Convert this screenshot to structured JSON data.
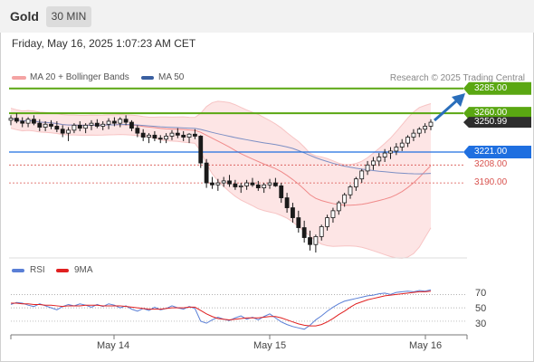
{
  "header": {
    "title": "Gold",
    "timeframe": "30 MIN"
  },
  "datetime": "Friday, May 16, 2025 1:07:23 AM CET",
  "legend": [
    {
      "label": "MA 20 + Bollinger Bands",
      "color": "#f4a3a3"
    },
    {
      "label": "MA 50",
      "color": "#3a5fa0"
    }
  ],
  "attribution": "Research © 2025 Trading Central",
  "levels": [
    {
      "label": "3285.00",
      "value": 3285.0,
      "style": "green-box",
      "color": "#5aa712"
    },
    {
      "label": "3260.00",
      "value": 3260.0,
      "style": "green-box",
      "color": "#5aa712"
    },
    {
      "label": "3250.99",
      "value": 3250.99,
      "style": "dark-box",
      "color": "#2e2e2e"
    },
    {
      "label": "3221.00",
      "value": 3221.0,
      "style": "blue-box",
      "color": "#1f6fe0"
    },
    {
      "label": "3208.00",
      "value": 3208.0,
      "style": "red-text",
      "color": "#d9534f"
    },
    {
      "label": "3190.00",
      "value": 3190.0,
      "style": "red-text",
      "color": "#d9534f"
    }
  ],
  "chart_data": {
    "type": "candlestick",
    "price_range": [
      3110,
      3292
    ],
    "candles": [
      [
        3253,
        3258,
        3248,
        3255
      ],
      [
        3255,
        3260,
        3250,
        3252
      ],
      [
        3252,
        3256,
        3246,
        3250
      ],
      [
        3250,
        3256,
        3246,
        3254
      ],
      [
        3254,
        3258,
        3248,
        3250
      ],
      [
        3250,
        3254,
        3242,
        3246
      ],
      [
        3246,
        3252,
        3242,
        3249
      ],
      [
        3249,
        3253,
        3244,
        3247
      ],
      [
        3247,
        3252,
        3241,
        3244
      ],
      [
        3244,
        3248,
        3236,
        3240
      ],
      [
        3240,
        3246,
        3232,
        3243
      ],
      [
        3243,
        3250,
        3240,
        3248
      ],
      [
        3248,
        3252,
        3242,
        3245
      ],
      [
        3245,
        3250,
        3240,
        3248
      ],
      [
        3248,
        3253,
        3243,
        3250
      ],
      [
        3250,
        3254,
        3245,
        3247
      ],
      [
        3247,
        3252,
        3243,
        3249
      ],
      [
        3249,
        3255,
        3244,
        3252
      ],
      [
        3252,
        3256,
        3247,
        3250
      ],
      [
        3250,
        3256,
        3246,
        3254
      ],
      [
        3254,
        3258,
        3248,
        3251
      ],
      [
        3251,
        3253,
        3242,
        3245
      ],
      [
        3245,
        3248,
        3236,
        3240
      ],
      [
        3240,
        3244,
        3232,
        3236
      ],
      [
        3236,
        3240,
        3230,
        3238
      ],
      [
        3238,
        3242,
        3232,
        3235
      ],
      [
        3235,
        3238,
        3230,
        3234
      ],
      [
        3234,
        3240,
        3230,
        3237
      ],
      [
        3237,
        3243,
        3233,
        3240
      ],
      [
        3240,
        3245,
        3235,
        3238
      ],
      [
        3238,
        3242,
        3232,
        3236
      ],
      [
        3236,
        3240,
        3230,
        3239
      ],
      [
        3239,
        3244,
        3234,
        3237
      ],
      [
        3237,
        3238,
        3205,
        3210
      ],
      [
        3210,
        3214,
        3185,
        3190
      ],
      [
        3190,
        3196,
        3184,
        3188
      ],
      [
        3188,
        3194,
        3182,
        3190
      ],
      [
        3190,
        3196,
        3186,
        3192
      ],
      [
        3192,
        3198,
        3186,
        3189
      ],
      [
        3189,
        3193,
        3183,
        3186
      ],
      [
        3186,
        3190,
        3180,
        3187
      ],
      [
        3187,
        3193,
        3183,
        3190
      ],
      [
        3190,
        3195,
        3186,
        3188
      ],
      [
        3188,
        3192,
        3182,
        3185
      ],
      [
        3185,
        3190,
        3180,
        3188
      ],
      [
        3188,
        3194,
        3184,
        3190
      ],
      [
        3190,
        3195,
        3186,
        3187
      ],
      [
        3187,
        3190,
        3170,
        3175
      ],
      [
        3175,
        3180,
        3160,
        3165
      ],
      [
        3165,
        3170,
        3150,
        3155
      ],
      [
        3155,
        3162,
        3140,
        3145
      ],
      [
        3145,
        3152,
        3130,
        3135
      ],
      [
        3135,
        3142,
        3122,
        3128
      ],
      [
        3128,
        3138,
        3120,
        3136
      ],
      [
        3136,
        3148,
        3132,
        3146
      ],
      [
        3146,
        3158,
        3142,
        3155
      ],
      [
        3155,
        3165,
        3150,
        3162
      ],
      [
        3162,
        3172,
        3158,
        3170
      ],
      [
        3170,
        3180,
        3166,
        3178
      ],
      [
        3178,
        3188,
        3174,
        3186
      ],
      [
        3186,
        3196,
        3182,
        3194
      ],
      [
        3194,
        3204,
        3190,
        3202
      ],
      [
        3202,
        3212,
        3198,
        3208
      ],
      [
        3208,
        3216,
        3203,
        3212
      ],
      [
        3212,
        3220,
        3207,
        3216
      ],
      [
        3216,
        3224,
        3211,
        3220
      ],
      [
        3220,
        3226,
        3214,
        3222
      ],
      [
        3222,
        3230,
        3218,
        3226
      ],
      [
        3226,
        3234,
        3222,
        3230
      ],
      [
        3230,
        3238,
        3226,
        3236
      ],
      [
        3236,
        3244,
        3232,
        3240
      ],
      [
        3240,
        3246,
        3236,
        3244
      ],
      [
        3244,
        3250,
        3240,
        3247
      ],
      [
        3247,
        3254,
        3243,
        3251
      ]
    ],
    "rsi_legend": [
      {
        "label": "RSI",
        "color": "#5a7fd6"
      },
      {
        "label": "9MA",
        "color": "#e02020"
      }
    ],
    "rsi_levels": [
      "70",
      "50",
      "30"
    ],
    "rsi": [
      55,
      58,
      57,
      54,
      52,
      56,
      53,
      50,
      47,
      52,
      55,
      53,
      56,
      54,
      51,
      55,
      52,
      56,
      54,
      50,
      53,
      48,
      45,
      49,
      46,
      51,
      47,
      49,
      53,
      50,
      48,
      52,
      49,
      30,
      27,
      32,
      36,
      33,
      31,
      35,
      38,
      33,
      36,
      32,
      37,
      41,
      35,
      29,
      25,
      22,
      20,
      18,
      24,
      32,
      38,
      45,
      51,
      56,
      60,
      62,
      64,
      66,
      68,
      69,
      71,
      72,
      70,
      73,
      74,
      75,
      74,
      76,
      75,
      77
    ],
    "rsi_ma": [
      57,
      57,
      56,
      56,
      55,
      55,
      54,
      54,
      53,
      52,
      53,
      53,
      53,
      54,
      54,
      54,
      53,
      53,
      53,
      53,
      52,
      51,
      50,
      49,
      48,
      48,
      48,
      49,
      50,
      50,
      50,
      51,
      51,
      46,
      41,
      37,
      34,
      33,
      32,
      33,
      34,
      35,
      35,
      35,
      36,
      37,
      37,
      35,
      32,
      29,
      26,
      24,
      23,
      23,
      25,
      29,
      34,
      40,
      45,
      51,
      56,
      59,
      62,
      64,
      66,
      68,
      69,
      70,
      71,
      72,
      73,
      74,
      74,
      75
    ],
    "x_labels": [
      "May 14",
      "May 15",
      "May 16"
    ]
  }
}
